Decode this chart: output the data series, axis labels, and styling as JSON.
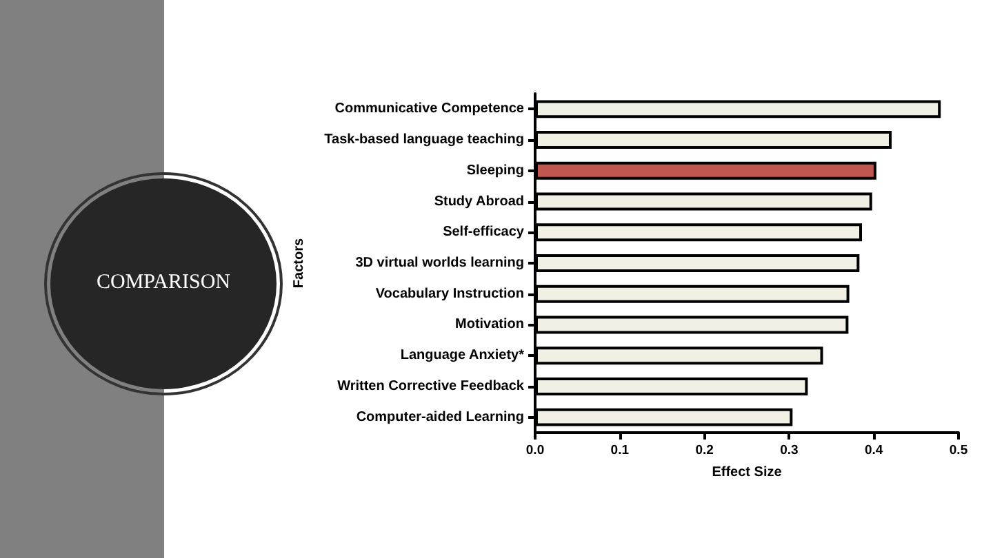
{
  "chart_data": {
    "type": "bar",
    "orientation": "horizontal",
    "title": "COMPARISON",
    "xlabel": "Effect Size",
    "ylabel": "Factors",
    "categories": [
      "Communicative Competence",
      "Task-based language teaching",
      "Sleeping",
      "Study Abroad",
      "Self-efficacy",
      "3D virtual worlds learning",
      "Vocabulary Instruction",
      "Motivation",
      "Language Anxiety*",
      "Written Corrective Feedback",
      "Computer-aided Learning"
    ],
    "values": [
      0.479,
      0.421,
      0.403,
      0.398,
      0.386,
      0.383,
      0.371,
      0.37,
      0.34,
      0.322,
      0.304
    ],
    "colors": [
      "#f2efe4",
      "#f2efe4",
      "#c0564f",
      "#f2efe4",
      "#f2efe4",
      "#f2efe4",
      "#f2efe4",
      "#f2efe4",
      "#f2efe4",
      "#f2efe4",
      "#f2efe4"
    ],
    "xlim": [
      0,
      0.5
    ],
    "xticks": [
      {
        "value": 0,
        "label": "0.0"
      },
      0.1,
      0.2,
      0.3,
      0.4,
      0.5
    ]
  }
}
